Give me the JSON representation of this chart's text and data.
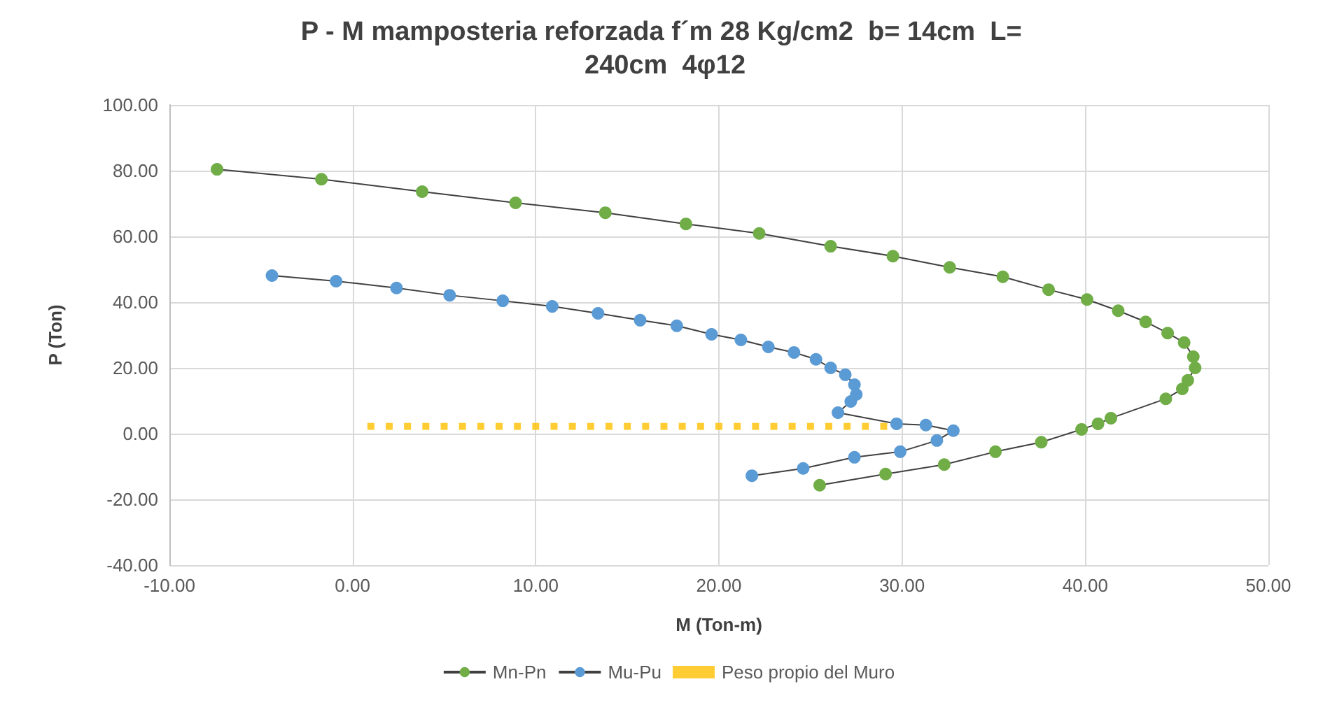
{
  "chart_data": {
    "type": "line",
    "title": "P - M mamposteria reforzada f´m 28 Kg/cm2  b= 14cm  L= 240cm  4φ12",
    "xlabel": "M (Ton-m)",
    "ylabel": "P (Ton)",
    "xlim": [
      -10,
      50
    ],
    "xticks": [
      {
        "value": -10,
        "label": "-10.00"
      },
      {
        "value": 0,
        "label": "0.00"
      },
      {
        "value": 10,
        "label": "10.00"
      },
      {
        "value": 20,
        "label": "20.00"
      },
      {
        "value": 30,
        "label": "30.00"
      },
      {
        "value": 40,
        "label": "40.00"
      },
      {
        "value": 50,
        "label": "50.00"
      }
    ],
    "ylim": [
      -40,
      100
    ],
    "yticks": [
      {
        "value": -40,
        "label": "-40.00"
      },
      {
        "value": -20,
        "label": "-20.00"
      },
      {
        "value": 0,
        "label": "0.00"
      },
      {
        "value": 20,
        "label": "20.00"
      },
      {
        "value": 40,
        "label": "40.00"
      },
      {
        "value": 60,
        "label": "60.00"
      },
      {
        "value": 80,
        "label": "80.00"
      },
      {
        "value": 100,
        "label": "100.00"
      }
    ],
    "grid": true,
    "legend": "bottom",
    "marker": "circle",
    "series": [
      {
        "name": "Mn-Pn",
        "color": "#70ad47",
        "x": [
          -7.4,
          -1.7,
          3.8,
          8.9,
          13.8,
          18.2,
          22.2,
          26.1,
          29.5,
          32.6,
          35.5,
          38.0,
          40.1,
          41.8,
          43.3,
          44.5,
          45.4,
          45.9,
          46.0,
          45.6,
          45.3,
          44.4,
          41.4,
          40.7,
          39.8,
          37.6,
          35.1,
          32.3,
          29.1,
          25.5
        ],
        "values": [
          80.4,
          77.4,
          73.6,
          70.2,
          67.2,
          63.8,
          60.9,
          57.0,
          54.0,
          50.6,
          47.7,
          43.8,
          40.8,
          37.4,
          34.0,
          30.6,
          27.7,
          23.4,
          20.0,
          16.2,
          13.6,
          10.6,
          4.7,
          3.0,
          1.3,
          -2.6,
          -5.5,
          -9.4,
          -12.3,
          -15.7
        ]
      },
      {
        "name": "Mu-Pu",
        "color": "#5b9bd5",
        "x": [
          -4.4,
          -0.9,
          2.4,
          5.3,
          8.2,
          10.9,
          13.4,
          15.7,
          17.7,
          19.6,
          21.2,
          22.7,
          24.1,
          25.3,
          26.1,
          26.9,
          27.4,
          27.5,
          27.2,
          26.5,
          29.7,
          31.3,
          32.8,
          31.9,
          29.9,
          27.4,
          24.6,
          21.8
        ],
        "values": [
          48.1,
          46.4,
          44.3,
          42.1,
          40.4,
          38.7,
          36.6,
          34.5,
          32.8,
          30.2,
          28.5,
          26.4,
          24.7,
          22.6,
          20.0,
          17.9,
          14.9,
          11.9,
          9.8,
          6.4,
          3.0,
          2.6,
          0.9,
          -2.1,
          -5.5,
          -7.2,
          -10.6,
          -12.8
        ]
      },
      {
        "name": "Peso propio del Muro",
        "type": "scatter",
        "marker": "square",
        "color": "#ffc000",
        "x": [
          1,
          2,
          3,
          4,
          5,
          6,
          7,
          8,
          9,
          10,
          11,
          12,
          13,
          14,
          15,
          16,
          17,
          18,
          19,
          20,
          21,
          22,
          23,
          24,
          25,
          26,
          27,
          28,
          29
        ],
        "values": [
          2.2,
          2.2,
          2.2,
          2.2,
          2.2,
          2.2,
          2.2,
          2.2,
          2.2,
          2.2,
          2.2,
          2.2,
          2.2,
          2.2,
          2.2,
          2.2,
          2.2,
          2.2,
          2.2,
          2.2,
          2.2,
          2.2,
          2.2,
          2.2,
          2.2,
          2.2,
          2.2,
          2.2,
          2.2
        ]
      }
    ]
  }
}
